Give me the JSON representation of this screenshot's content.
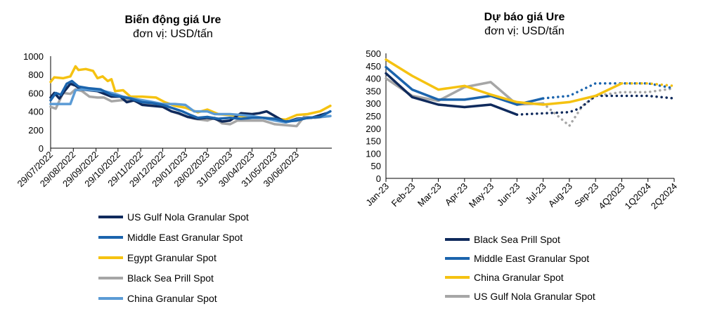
{
  "chart_data": [
    {
      "type": "line",
      "title": "Biến động giá Ure",
      "subtitle": "đơn vị: USD/tấn",
      "ylim": [
        0,
        1000
      ],
      "yticks": [
        0,
        200,
        400,
        600,
        800,
        1000
      ],
      "xlim": [
        "2022-07-29",
        "2023-08-17"
      ],
      "xtick_labels": [
        "29/07/2022",
        "29/08/2022",
        "29/09/2022",
        "29/10/2022",
        "29/11/2022",
        "29/12/2022",
        "29/01/2023",
        "28/02/2023",
        "31/03/2023",
        "30/04/2023",
        "31/05/2023",
        "30/06/2023"
      ],
      "xtick_dates": [
        "2022-07-29",
        "2022-08-29",
        "2022-09-29",
        "2022-10-29",
        "2022-11-29",
        "2022-12-29",
        "2023-01-29",
        "2023-02-28",
        "2023-03-31",
        "2023-04-30",
        "2023-05-31",
        "2023-06-30"
      ],
      "legend_position": "bottom",
      "series": [
        {
          "name": "US Gulf Nola Granular Spot",
          "color": "#0f2a5c",
          "points": [
            [
              "2022-07-29",
              550
            ],
            [
              "2022-08-03",
              600
            ],
            [
              "2022-08-10",
              540
            ],
            [
              "2022-08-17",
              620
            ],
            [
              "2022-08-25",
              700
            ],
            [
              "2022-09-01",
              680
            ],
            [
              "2022-09-08",
              640
            ],
            [
              "2022-09-20",
              630
            ],
            [
              "2022-10-01",
              620
            ],
            [
              "2022-10-20",
              560
            ],
            [
              "2022-11-01",
              560
            ],
            [
              "2022-11-10",
              500
            ],
            [
              "2022-11-20",
              520
            ],
            [
              "2022-12-01",
              470
            ],
            [
              "2022-12-15",
              460
            ],
            [
              "2022-12-29",
              450
            ],
            [
              "2023-01-10",
              400
            ],
            [
              "2023-01-20",
              380
            ],
            [
              "2023-02-01",
              340
            ],
            [
              "2023-02-15",
              320
            ],
            [
              "2023-02-28",
              330
            ],
            [
              "2023-03-10",
              320
            ],
            [
              "2023-03-20",
              290
            ],
            [
              "2023-03-31",
              300
            ],
            [
              "2023-04-15",
              380
            ],
            [
              "2023-04-30",
              370
            ],
            [
              "2023-05-10",
              380
            ],
            [
              "2023-05-20",
              400
            ],
            [
              "2023-05-31",
              350
            ],
            [
              "2023-06-15",
              280
            ],
            [
              "2023-06-30",
              320
            ],
            [
              "2023-07-20",
              330
            ],
            [
              "2023-08-10",
              380
            ]
          ]
        },
        {
          "name": "Middle East Granular Spot",
          "color": "#1b64ad",
          "points": [
            [
              "2022-07-29",
              520
            ],
            [
              "2022-08-05",
              600
            ],
            [
              "2022-08-12",
              580
            ],
            [
              "2022-08-20",
              700
            ],
            [
              "2022-08-27",
              730
            ],
            [
              "2022-09-05",
              670
            ],
            [
              "2022-09-20",
              650
            ],
            [
              "2022-10-05",
              640
            ],
            [
              "2022-10-20",
              580
            ],
            [
              "2022-11-01",
              560
            ],
            [
              "2022-11-15",
              540
            ],
            [
              "2022-12-01",
              500
            ],
            [
              "2022-12-15",
              490
            ],
            [
              "2022-12-29",
              470
            ],
            [
              "2023-01-10",
              440
            ],
            [
              "2023-01-25",
              400
            ],
            [
              "2023-02-05",
              360
            ],
            [
              "2023-02-15",
              330
            ],
            [
              "2023-02-28",
              340
            ],
            [
              "2023-03-15",
              320
            ],
            [
              "2023-03-31",
              330
            ],
            [
              "2023-04-15",
              320
            ],
            [
              "2023-04-30",
              330
            ],
            [
              "2023-05-15",
              330
            ],
            [
              "2023-05-31",
              320
            ],
            [
              "2023-06-15",
              290
            ],
            [
              "2023-06-30",
              300
            ],
            [
              "2023-07-15",
              330
            ],
            [
              "2023-08-01",
              340
            ],
            [
              "2023-08-15",
              400
            ]
          ]
        },
        {
          "name": "Egypt Granular Spot",
          "color": "#f5c211",
          "points": [
            [
              "2022-07-29",
              720
            ],
            [
              "2022-08-03",
              770
            ],
            [
              "2022-08-15",
              760
            ],
            [
              "2022-08-25",
              780
            ],
            [
              "2022-09-01",
              890
            ],
            [
              "2022-09-05",
              850
            ],
            [
              "2022-09-15",
              860
            ],
            [
              "2022-09-25",
              840
            ],
            [
              "2022-10-01",
              760
            ],
            [
              "2022-10-08",
              780
            ],
            [
              "2022-10-15",
              730
            ],
            [
              "2022-10-20",
              750
            ],
            [
              "2022-10-25",
              620
            ],
            [
              "2022-11-05",
              630
            ],
            [
              "2022-11-15",
              560
            ],
            [
              "2022-12-01",
              560
            ],
            [
              "2022-12-20",
              550
            ],
            [
              "2023-01-01",
              500
            ],
            [
              "2023-01-15",
              460
            ],
            [
              "2023-01-29",
              440
            ],
            [
              "2023-02-15",
              390
            ],
            [
              "2023-02-28",
              420
            ],
            [
              "2023-03-15",
              370
            ],
            [
              "2023-03-31",
              360
            ],
            [
              "2023-04-15",
              350
            ],
            [
              "2023-04-30",
              340
            ],
            [
              "2023-05-15",
              330
            ],
            [
              "2023-05-31",
              320
            ],
            [
              "2023-06-15",
              310
            ],
            [
              "2023-06-30",
              360
            ],
            [
              "2023-07-15",
              370
            ],
            [
              "2023-08-01",
              400
            ],
            [
              "2023-08-15",
              460
            ]
          ]
        },
        {
          "name": "Black Sea Prill Spot",
          "color": "#a6a6a6",
          "points": [
            [
              "2022-07-29",
              450
            ],
            [
              "2022-08-05",
              430
            ],
            [
              "2022-08-15",
              600
            ],
            [
              "2022-08-25",
              590
            ],
            [
              "2022-09-01",
              640
            ],
            [
              "2022-09-10",
              620
            ],
            [
              "2022-09-20",
              560
            ],
            [
              "2022-10-01",
              550
            ],
            [
              "2022-10-10",
              550
            ],
            [
              "2022-10-20",
              510
            ],
            [
              "2022-11-01",
              520
            ],
            [
              "2022-11-15",
              530
            ],
            [
              "2022-12-01",
              480
            ],
            [
              "2022-12-15",
              470
            ],
            [
              "2022-12-29",
              450
            ],
            [
              "2023-01-10",
              400
            ],
            [
              "2023-01-25",
              360
            ],
            [
              "2023-02-10",
              320
            ],
            [
              "2023-02-28",
              300
            ],
            [
              "2023-03-10",
              330
            ],
            [
              "2023-03-20",
              270
            ],
            [
              "2023-03-31",
              260
            ],
            [
              "2023-04-10",
              300
            ],
            [
              "2023-04-30",
              300
            ],
            [
              "2023-05-15",
              300
            ],
            [
              "2023-05-31",
              260
            ],
            [
              "2023-06-15",
              250
            ],
            [
              "2023-06-30",
              240
            ],
            [
              "2023-07-10",
              340
            ],
            [
              "2023-07-25",
              330
            ],
            [
              "2023-08-15",
              350
            ]
          ]
        },
        {
          "name": "China Granular Spot",
          "color": "#5b9bd5",
          "points": [
            [
              "2022-07-29",
              480
            ],
            [
              "2022-08-10",
              480
            ],
            [
              "2022-08-25",
              480
            ],
            [
              "2022-09-01",
              630
            ],
            [
              "2022-09-10",
              640
            ],
            [
              "2022-09-25",
              630
            ],
            [
              "2022-10-10",
              620
            ],
            [
              "2022-10-25",
              590
            ],
            [
              "2022-11-05",
              560
            ],
            [
              "2022-11-25",
              530
            ],
            [
              "2022-12-10",
              510
            ],
            [
              "2022-12-29",
              480
            ],
            [
              "2023-01-15",
              480
            ],
            [
              "2023-01-29",
              470
            ],
            [
              "2023-02-10",
              400
            ],
            [
              "2023-02-28",
              400
            ],
            [
              "2023-03-10",
              370
            ],
            [
              "2023-03-31",
              370
            ],
            [
              "2023-04-15",
              360
            ],
            [
              "2023-04-30",
              350
            ],
            [
              "2023-05-15",
              330
            ],
            [
              "2023-05-31",
              300
            ],
            [
              "2023-06-15",
              280
            ],
            [
              "2023-06-30",
              310
            ],
            [
              "2023-07-15",
              330
            ],
            [
              "2023-08-01",
              340
            ],
            [
              "2023-08-15",
              350
            ]
          ]
        }
      ]
    },
    {
      "type": "line",
      "title": "Dự báo giá Ure",
      "subtitle": "đơn vị: USD/tấn",
      "ylim": [
        0,
        500
      ],
      "yticks": [
        0,
        50,
        100,
        150,
        200,
        250,
        300,
        350,
        400,
        450,
        500
      ],
      "categories": [
        "Jan-23",
        "Feb-23",
        "Mar-23",
        "Apr-23",
        "May-23",
        "Jun-23",
        "Jul-23",
        "Aug-23",
        "Sep-23",
        "4Q2023",
        "1Q2024",
        "2Q2024"
      ],
      "legend_position": "bottom",
      "series": [
        {
          "name": "Black Sea Prill Spot",
          "color": "#0f2a5c",
          "actual": [
            [
              0,
              420
            ],
            [
              1,
              325
            ],
            [
              2,
              295
            ],
            [
              3,
              285
            ],
            [
              4,
              295
            ],
            [
              5,
              255
            ]
          ],
          "forecast": [
            [
              5,
              255
            ],
            [
              6,
              260
            ],
            [
              7,
              265
            ],
            [
              7.4,
              280
            ],
            [
              8,
              330
            ],
            [
              9,
              330
            ],
            [
              10,
              330
            ],
            [
              11,
              320
            ]
          ]
        },
        {
          "name": "Middle East Granular Spot",
          "color": "#1b64ad",
          "actual": [
            [
              0,
              445
            ],
            [
              1,
              355
            ],
            [
              2,
              315
            ],
            [
              3,
              315
            ],
            [
              4,
              330
            ],
            [
              5,
              295
            ],
            [
              6,
              320
            ]
          ],
          "forecast": [
            [
              6,
              320
            ],
            [
              7,
              330
            ],
            [
              8,
              380
            ],
            [
              9,
              380
            ],
            [
              10,
              380
            ],
            [
              11,
              360
            ]
          ]
        },
        {
          "name": "China Granular Spot",
          "color": "#f5c211",
          "actual": [
            [
              0,
              475
            ],
            [
              1,
              410
            ],
            [
              2,
              355
            ],
            [
              3,
              370
            ],
            [
              4,
              335
            ],
            [
              5,
              305
            ],
            [
              6,
              295
            ],
            [
              7,
              305
            ],
            [
              8,
              330
            ],
            [
              9,
              380
            ]
          ],
          "forecast": [
            [
              9,
              380
            ],
            [
              10,
              380
            ],
            [
              11,
              370
            ]
          ]
        },
        {
          "name": "US Gulf Nola Granular Spot",
          "color": "#a6a6a6",
          "actual": [
            [
              0,
              400
            ],
            [
              1,
              330
            ],
            [
              2,
              310
            ],
            [
              3,
              365
            ],
            [
              4,
              385
            ],
            [
              5,
              295
            ],
            [
              6,
              300
            ]
          ],
          "forecast": [
            [
              6,
              300
            ],
            [
              7,
              210
            ],
            [
              7.5,
              290
            ],
            [
              8,
              330
            ],
            [
              9,
              345
            ],
            [
              10,
              345
            ],
            [
              11,
              360
            ]
          ]
        }
      ]
    }
  ]
}
